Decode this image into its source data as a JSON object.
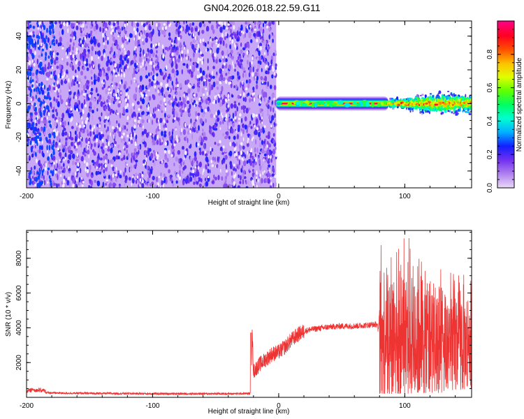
{
  "figure": {
    "title": "GN04.2026.018.22.59.G11"
  },
  "chart_data": [
    {
      "type": "heatmap",
      "xlabel": "Height of straight line (km)",
      "ylabel": "Frequency (Hz)",
      "xlim": [
        -200,
        153
      ],
      "ylim": [
        -50,
        49
      ],
      "x_ticks": [
        -200,
        -100,
        0,
        100
      ],
      "x_tick_labels": [
        "-200",
        "-100",
        "0",
        "100"
      ],
      "y_ticks": [
        -40,
        -20,
        0,
        20,
        40
      ],
      "y_tick_labels": [
        "-40",
        "-20",
        "0",
        "20",
        "40"
      ],
      "grid": false,
      "colorbar": {
        "label": "Normalized spectral amplitude",
        "range": [
          0,
          1
        ],
        "ticks": [
          0,
          0.2,
          0.4,
          0.6,
          0.8
        ],
        "tick_labels": [
          "0.0",
          "0.2",
          "0.4",
          "0.6",
          "0.8"
        ],
        "colormap": [
          "#e8d8f8",
          "#b080f0",
          "#7030f0",
          "#1020ff",
          "#00b0ff",
          "#00ffd0",
          "#00ff60",
          "#60ff00",
          "#e0ff00",
          "#ffc000",
          "#ff5000",
          "#ff0020",
          "#ff0080"
        ]
      },
      "regions": [
        {
          "x": [
            -200,
            -2
          ],
          "frequency": [
            -50,
            49
          ],
          "amplitude": [
            0.05,
            0.25
          ],
          "description_level": "noise"
        },
        {
          "x": [
            -2,
            87
          ],
          "frequency": [
            -3,
            3
          ],
          "amplitude_peak": 1.0
        },
        {
          "x": [
            87,
            153
          ],
          "frequency": [
            -8,
            10
          ],
          "amplitude": [
            0.2,
            0.7
          ]
        }
      ]
    },
    {
      "type": "line",
      "xlabel": "Height of straight line (km)",
      "ylabel": "SNR (10 * v/v)",
      "xlim": [
        -200,
        153
      ],
      "ylim": [
        0,
        9600
      ],
      "x_ticks": [
        -200,
        -100,
        0,
        100
      ],
      "x_tick_labels": [
        "-200",
        "-100",
        "0",
        "100"
      ],
      "y_ticks": [
        2000,
        4000,
        6000,
        8000
      ],
      "y_tick_labels": [
        "2000",
        "4000",
        "6000",
        "8000"
      ],
      "grid": false,
      "series": [
        {
          "color": "#ee3333",
          "x": [
            -200,
            -195,
            -190,
            -185,
            -180,
            -170,
            -150,
            -120,
            -100,
            -80,
            -60,
            -40,
            -22,
            -21,
            -20,
            -15,
            -10,
            -5,
            0,
            5,
            10,
            15,
            20,
            25,
            30,
            35,
            40,
            50,
            60,
            70,
            78,
            79,
            80,
            90,
            100,
            110,
            120,
            130,
            140,
            153
          ],
          "y": [
            250,
            350,
            300,
            280,
            260,
            240,
            230,
            220,
            210,
            210,
            210,
            210,
            220,
            3700,
            1500,
            1900,
            2200,
            2500,
            2600,
            2900,
            3300,
            3600,
            3800,
            3900,
            3950,
            4000,
            4050,
            4100,
            4100,
            4150,
            4200,
            3800,
            5000,
            5000,
            5000,
            5000,
            4800,
            4600,
            4500,
            4400
          ],
          "envelope_after_x": 80,
          "envelope_low": [
            200,
            200,
            200,
            250,
            250,
            250,
            400,
            500
          ],
          "envelope_high": [
            9000,
            8800,
            9500,
            9000,
            8200,
            7500,
            7300,
            7000
          ],
          "envelope_x": [
            80,
            90,
            100,
            110,
            120,
            130,
            140,
            153
          ]
        }
      ]
    }
  ]
}
